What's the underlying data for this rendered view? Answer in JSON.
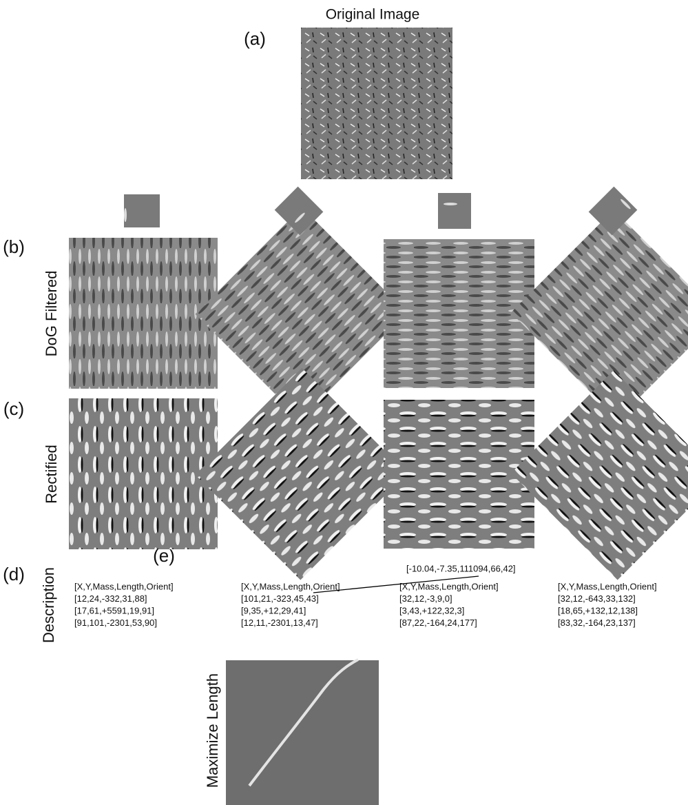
{
  "header": {
    "title": "Original Image"
  },
  "panel_labels": [
    "(a)",
    "(b)",
    "(c)",
    "(d)",
    "(e)"
  ],
  "row_labels": {
    "dog": "DoG Filtered",
    "rectified": "Rectified",
    "description": "Description",
    "maximize": "Maximize Length"
  },
  "descriptions": [
    [
      "[X,Y,Mass,Length,Orient]",
      "[12,24,-332,31,88]",
      "[17,61,+5591,19,91]",
      "[91,101,-2301,53,90]"
    ],
    [
      "[X,Y,Mass,Length,Orient]",
      "[101,21,-323,45,43]",
      "[9,35,+12,29,41]",
      "[12,11,-2301,13,47]"
    ],
    [
      "[X,Y,Mass,Length,Orient]",
      "[32,12,-3,9,0]",
      "[3,43,+122,32,3]",
      "[87,22,-164,24,177]"
    ],
    [
      "[X,Y,Mass,Length,Orient]",
      "[32,12,-643,33,132]",
      "[18,65,+132,12,138]",
      "[83,32,-164,23,137]"
    ]
  ],
  "annotation": "[-10.04,-7.35,111094,66,42]"
}
